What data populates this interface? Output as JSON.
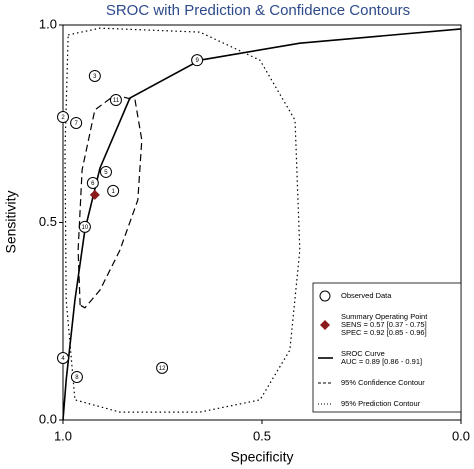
{
  "chart_data": {
    "type": "scatter",
    "title": "SROC with Prediction & Confidence Contours",
    "xlabel": "Specificity",
    "ylabel": "Sensitivity",
    "xlim": [
      1,
      0
    ],
    "ylim": [
      0,
      1
    ],
    "xticks": [
      {
        "value": 1,
        "label": "1.0"
      },
      {
        "value": 0.5,
        "label": "0.5"
      },
      {
        "value": 0,
        "label": "0.0"
      }
    ],
    "yticks": [
      {
        "value": 0,
        "label": "0.0"
      },
      {
        "value": 0.5,
        "label": "0.5"
      },
      {
        "value": 1,
        "label": "1.0"
      }
    ],
    "legend": "lower right",
    "series": [
      {
        "name": "Observed Data",
        "marker": "circle",
        "color": "#000000",
        "x": [
          0.874,
          1.0,
          0.92,
          1.0,
          0.892,
          0.925,
          0.967,
          0.965,
          0.663,
          0.945,
          0.867,
          0.751
        ],
        "values": [
          0.58,
          0.767,
          0.871,
          0.157,
          0.628,
          0.6,
          0.752,
          0.109,
          0.911,
          0.489,
          0.81,
          0.132
        ],
        "labels": [
          "1",
          "2",
          "3",
          "4",
          "5",
          "6",
          "7",
          "8",
          "9",
          "10",
          "11",
          "12"
        ]
      },
      {
        "name": "Summary Operating Point",
        "marker": "diamond",
        "color": "#8b1a1a",
        "details": [
          "SENS = 0.57 [0.37 - 0.75]",
          "SPEC = 0.92 [0.85 - 0.96]"
        ],
        "x": [
          0.92
        ],
        "values": [
          0.57
        ]
      },
      {
        "name": "SROC Curve",
        "style": "solid",
        "color": "#000000",
        "details": [
          "AUC = 0.89 [0.86 - 0.91]"
        ],
        "x": [
          1.0,
          0.992,
          0.97,
          0.945,
          0.907,
          0.832,
          0.656,
          0.405,
          0.0
        ],
        "values": [
          0.0,
          0.101,
          0.304,
          0.481,
          0.638,
          0.815,
          0.911,
          0.954,
          0.99
        ]
      },
      {
        "name": "95% Confidence Contour",
        "style": "dashed",
        "color": "#000000",
        "x": [
          0.957,
          0.962,
          0.952,
          0.92,
          0.869,
          0.819,
          0.802,
          0.812,
          0.857,
          0.907,
          0.945,
          0.957
        ],
        "values": [
          0.291,
          0.43,
          0.633,
          0.785,
          0.823,
          0.81,
          0.709,
          0.557,
          0.43,
          0.329,
          0.284,
          0.291
        ]
      },
      {
        "name": "95% Prediction Contour",
        "style": "dotted",
        "color": "#000000",
        "x": [
          0.987,
          0.907,
          0.656,
          0.505,
          0.417,
          0.405,
          0.43,
          0.505,
          0.656,
          0.857,
          0.97,
          0.992,
          0.995,
          0.987
        ],
        "values": [
          0.975,
          0.992,
          0.982,
          0.911,
          0.759,
          0.43,
          0.177,
          0.051,
          0.02,
          0.02,
          0.051,
          0.304,
          0.684,
          0.975
        ]
      }
    ]
  }
}
